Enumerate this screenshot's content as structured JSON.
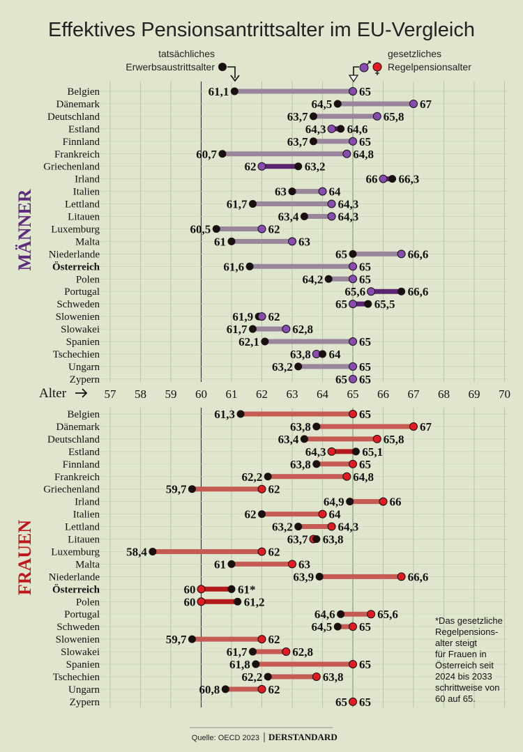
{
  "title": "Effektives Pensionsantrittsalter im EU-Vergleich",
  "legend": {
    "actual_line1": "tatsächliches",
    "actual_line2": "Erwerbsaustrittsalter",
    "legal_line1": "gesetzliches",
    "legal_line2": "Regelpensionsalter"
  },
  "axis_label": "Alter",
  "section_men": "MÄNNER",
  "section_women": "FRAUEN",
  "footnote": [
    "*Das gesetzliche",
    "Regelpensions-",
    "alter steigt",
    "für Frauen in",
    "Österreich seit",
    "2024 bis 2033",
    "schrittweise von",
    "60 auf 65."
  ],
  "source": "Quelle: OECD 2023",
  "brand": "DERSTANDARD",
  "colors": {
    "background": "#dfe6cd",
    "men_dot": "#8a4bb0",
    "men_bar": "#9a869c",
    "men_bar_dark": "#5a2470",
    "women_dot": "#e21b23",
    "women_bar": "#c65a55",
    "women_bar_dark": "#b51a1d",
    "actual_dot": "#1a1010"
  },
  "chart_data": [
    {
      "type": "dumbbell",
      "name": "Männer",
      "x_ticks": [
        57,
        58,
        59,
        60,
        61,
        62,
        63,
        64,
        65,
        66,
        67,
        68,
        69,
        70
      ],
      "xlim": [
        57,
        70
      ],
      "rows": [
        {
          "country": "Belgien",
          "actual": 61.1,
          "legal": 65,
          "actual_label": "61,1",
          "legal_label": "65"
        },
        {
          "country": "Dänemark",
          "actual": 64.5,
          "legal": 67,
          "actual_label": "64,5",
          "legal_label": "67"
        },
        {
          "country": "Deutschland",
          "actual": 63.7,
          "legal": 65.8,
          "actual_label": "63,7",
          "legal_label": "65,8"
        },
        {
          "country": "Estland",
          "actual": 64.6,
          "legal": 64.3,
          "actual_label": "64,6",
          "legal_label": "64,3"
        },
        {
          "country": "Finnland",
          "actual": 63.7,
          "legal": 65,
          "actual_label": "63,7",
          "legal_label": "65"
        },
        {
          "country": "Frankreich",
          "actual": 60.7,
          "legal": 64.8,
          "actual_label": "60,7",
          "legal_label": "64,8"
        },
        {
          "country": "Griechenland",
          "actual": 63.2,
          "legal": 62,
          "actual_label": "63,2",
          "legal_label": "62"
        },
        {
          "country": "Irland",
          "actual": 66.3,
          "legal": 66,
          "actual_label": "66,3",
          "legal_label": "66"
        },
        {
          "country": "Italien",
          "actual": 63,
          "legal": 64,
          "actual_label": "63",
          "legal_label": "64"
        },
        {
          "country": "Lettland",
          "actual": 61.7,
          "legal": 64.3,
          "actual_label": "61,7",
          "legal_label": "64,3"
        },
        {
          "country": "Litauen",
          "actual": 63.4,
          "legal": 64.3,
          "actual_label": "63,4",
          "legal_label": "64,3"
        },
        {
          "country": "Luxemburg",
          "actual": 60.5,
          "legal": 62,
          "actual_label": "60,5",
          "legal_label": "62"
        },
        {
          "country": "Malta",
          "actual": 61,
          "legal": 63,
          "actual_label": "61",
          "legal_label": "63"
        },
        {
          "country": "Niederlande",
          "actual": 65,
          "legal": 66.6,
          "actual_label": "65",
          "legal_label": "66,6"
        },
        {
          "country": "Österreich",
          "actual": 61.6,
          "legal": 65,
          "actual_label": "61,6",
          "legal_label": "65",
          "bold": true
        },
        {
          "country": "Polen",
          "actual": 64.2,
          "legal": 65,
          "actual_label": "64,2",
          "legal_label": "65"
        },
        {
          "country": "Portugal",
          "actual": 66.6,
          "legal": 65.6,
          "actual_label": "66,6",
          "legal_label": "65,6"
        },
        {
          "country": "Schweden",
          "actual": 65.5,
          "legal": 65,
          "actual_label": "65,5",
          "legal_label": "65"
        },
        {
          "country": "Slowenien",
          "actual": 61.9,
          "legal": 62,
          "actual_label": "61,9",
          "legal_label": "62"
        },
        {
          "country": "Slowakei",
          "actual": 61.7,
          "legal": 62.8,
          "actual_label": "61,7",
          "legal_label": "62,8"
        },
        {
          "country": "Spanien",
          "actual": 62.1,
          "legal": 65,
          "actual_label": "62,1",
          "legal_label": "65"
        },
        {
          "country": "Tschechien",
          "actual": 64,
          "legal": 63.8,
          "actual_label": "64",
          "legal_label": "63,8"
        },
        {
          "country": "Ungarn",
          "actual": 63.2,
          "legal": 65,
          "actual_label": "63,2",
          "legal_label": "65"
        },
        {
          "country": "Zypern",
          "actual": 65,
          "legal": 65,
          "actual_label": "65",
          "legal_label": "65"
        }
      ]
    },
    {
      "type": "dumbbell",
      "name": "Frauen",
      "xlim": [
        57,
        70
      ],
      "rows": [
        {
          "country": "Belgien",
          "actual": 61.3,
          "legal": 65,
          "actual_label": "61,3",
          "legal_label": "65"
        },
        {
          "country": "Dänemark",
          "actual": 63.8,
          "legal": 67,
          "actual_label": "63,8",
          "legal_label": "67"
        },
        {
          "country": "Deutschland",
          "actual": 63.4,
          "legal": 65.8,
          "actual_label": "63,4",
          "legal_label": "65,8"
        },
        {
          "country": "Estland",
          "actual": 65.1,
          "legal": 64.3,
          "actual_label": "65,1",
          "legal_label": "64,3"
        },
        {
          "country": "Finnland",
          "actual": 63.8,
          "legal": 65,
          "actual_label": "63,8",
          "legal_label": "65"
        },
        {
          "country": "Frankreich",
          "actual": 62.2,
          "legal": 64.8,
          "actual_label": "62,2",
          "legal_label": "64,8"
        },
        {
          "country": "Griechenland",
          "actual": 59.7,
          "legal": 62,
          "actual_label": "59,7",
          "legal_label": "62"
        },
        {
          "country": "Irland",
          "actual": 64.9,
          "legal": 66,
          "actual_label": "64,9",
          "legal_label": "66"
        },
        {
          "country": "Italien",
          "actual": 62,
          "legal": 64,
          "actual_label": "62",
          "legal_label": "64"
        },
        {
          "country": "Lettland",
          "actual": 63.2,
          "legal": 64.3,
          "actual_label": "63,2",
          "legal_label": "64,3"
        },
        {
          "country": "Litauen",
          "actual": 63.8,
          "legal": 63.7,
          "actual_label": "63,8",
          "legal_label": "63,7"
        },
        {
          "country": "Luxemburg",
          "actual": 58.4,
          "legal": 62,
          "actual_label": "58,4",
          "legal_label": "62"
        },
        {
          "country": "Malta",
          "actual": 61,
          "legal": 63,
          "actual_label": "61",
          "legal_label": "63"
        },
        {
          "country": "Niederlande",
          "actual": 63.9,
          "legal": 66.6,
          "actual_label": "63,9",
          "legal_label": "66,6"
        },
        {
          "country": "Österreich",
          "actual": 61,
          "legal": 60,
          "actual_label": "61*",
          "legal_label": "60",
          "bold": true
        },
        {
          "country": "Polen",
          "actual": 61.2,
          "legal": 60,
          "actual_label": "61,2",
          "legal_label": "60"
        },
        {
          "country": "Portugal",
          "actual": 64.6,
          "legal": 65.6,
          "actual_label": "64,6",
          "legal_label": "65,6"
        },
        {
          "country": "Schweden",
          "actual": 64.5,
          "legal": 65,
          "actual_label": "64,5",
          "legal_label": "65"
        },
        {
          "country": "Slowenien",
          "actual": 59.7,
          "legal": 62,
          "actual_label": "59,7",
          "legal_label": "62"
        },
        {
          "country": "Slowakei",
          "actual": 61.7,
          "legal": 62.8,
          "actual_label": "61,7",
          "legal_label": "62,8"
        },
        {
          "country": "Spanien",
          "actual": 61.8,
          "legal": 65,
          "actual_label": "61,8",
          "legal_label": "65"
        },
        {
          "country": "Tschechien",
          "actual": 62.2,
          "legal": 63.8,
          "actual_label": "62,2",
          "legal_label": "63,8"
        },
        {
          "country": "Ungarn",
          "actual": 60.8,
          "legal": 62,
          "actual_label": "60,8",
          "legal_label": "62"
        },
        {
          "country": "Zypern",
          "actual": 65,
          "legal": 65,
          "actual_label": "65",
          "legal_label": "65"
        }
      ]
    }
  ]
}
